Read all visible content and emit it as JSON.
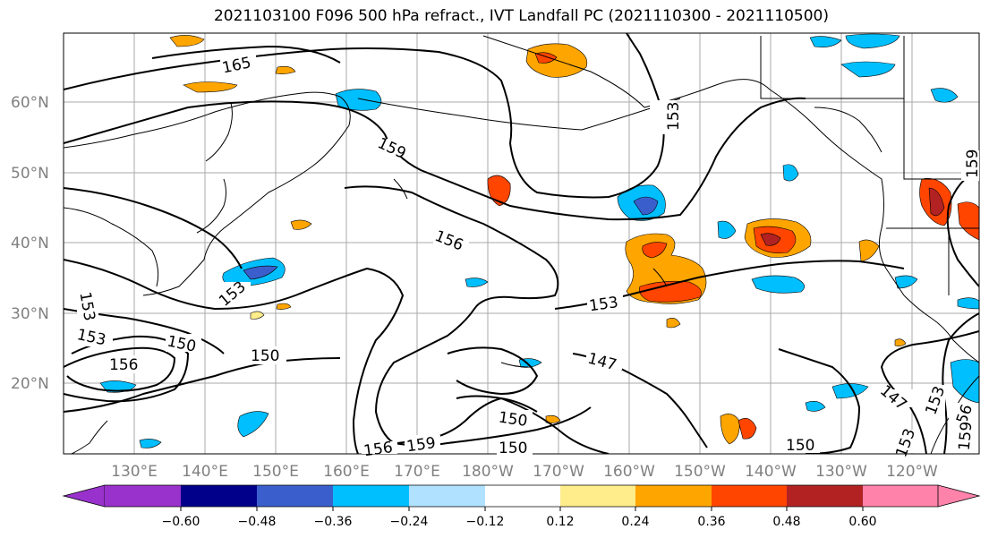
{
  "title": "2021103100 F096 500 hPa refract., IVT Landfall PC (2021110300 - 2021110500)",
  "latitude_labels": [
    "60°N",
    "50°N",
    "40°N",
    "30°N",
    "20°N"
  ],
  "longitude_labels": [
    "130°E",
    "140°E",
    "150°E",
    "160°E",
    "170°E",
    "180°W",
    "170°W",
    "160°W",
    "150°W",
    "140°W",
    "130°W",
    "120°W"
  ],
  "contour_labels": [
    "165",
    "159",
    "156",
    "153",
    "153",
    "153",
    "150",
    "150",
    "156",
    "150",
    "150",
    "147",
    "147",
    "153",
    "156",
    "159",
    "150",
    "156",
    "159",
    "153",
    "159",
    "153",
    "153"
  ],
  "colorbar": {
    "ticks": [
      "−0.60",
      "−0.48",
      "−0.36",
      "−0.24",
      "−0.12",
      "0.12",
      "0.24",
      "0.36",
      "0.48",
      "0.60"
    ],
    "colors": [
      "#9932cc",
      "#00008b",
      "#3a5fcd",
      "#00bfff",
      "#b0e2ff",
      "#ffffff",
      "#ffec8b",
      "#ffa500",
      "#ff4500",
      "#b22222",
      "#ff82ab"
    ]
  },
  "shading_colors": {
    "positive_light": "#ffec8b",
    "positive_mid": "#ffa500",
    "positive_strong": "#ff4500",
    "positive_max": "#b22222",
    "negative_light": "#b0e2ff",
    "negative_mid": "#00bfff",
    "negative_strong": "#3a5fcd"
  }
}
